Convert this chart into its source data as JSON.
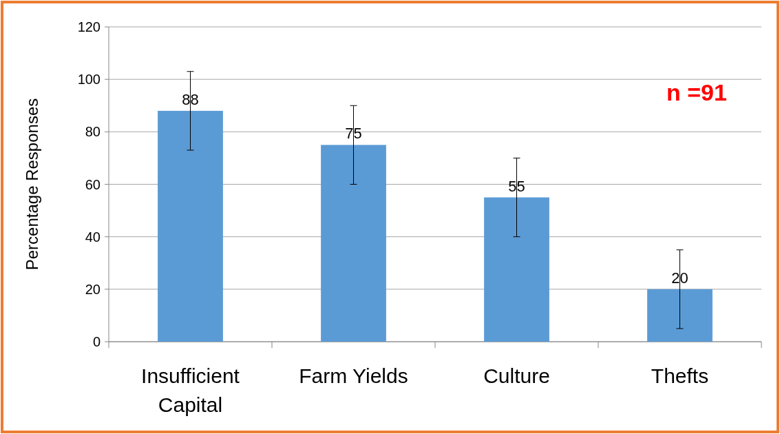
{
  "chart_data": {
    "type": "bar",
    "ylabel": "Percentage Responses",
    "categories": [
      "Insufficient Capital",
      "Farm Yields",
      "Culture",
      "Thefts"
    ],
    "values": [
      88,
      75,
      55,
      20
    ],
    "errors": [
      15,
      15,
      15,
      15
    ],
    "color": "#5b9bd5",
    "ylim": [
      0,
      120
    ],
    "yticks": [
      0,
      20,
      40,
      60,
      80,
      100,
      120
    ],
    "grid": "y",
    "data_labels": true,
    "annotations": [
      "n =91"
    ]
  }
}
